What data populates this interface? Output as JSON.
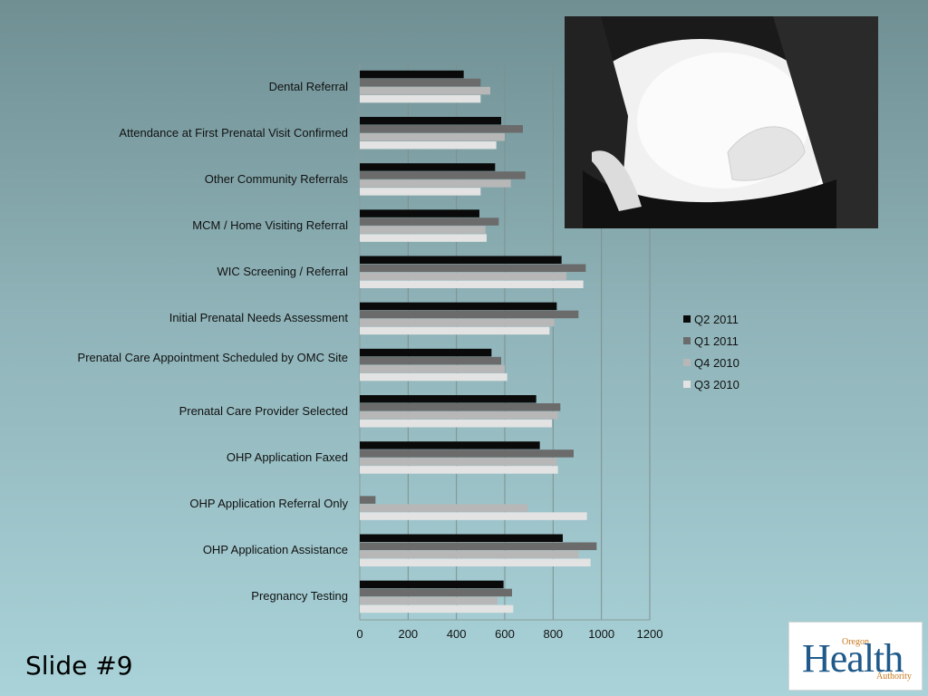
{
  "slide": {
    "title": "Slide #9"
  },
  "logo": {
    "main": "Health",
    "top": "Oregon",
    "bottom": "Authority"
  },
  "colors": {
    "q2_2011": "#0a0a0a",
    "q1_2011": "#6b6b6b",
    "q4_2010": "#b7b7b7",
    "q3_2010": "#e3e3e3"
  },
  "chart_data": {
    "type": "bar",
    "orientation": "horizontal",
    "categories": [
      "Dental Referral",
      "Attendance at First Prenatal Visit Confirmed",
      "Other Community Referrals",
      "MCM / Home Visiting Referral",
      "WIC Screening / Referral",
      "Initial Prenatal Needs Assessment",
      "Prenatal Care Appointment Scheduled by OMC Site",
      "Prenatal Care Provider Selected",
      "OHP Application Faxed",
      "OHP Application Referral Only",
      "OHP Application Assistance",
      "Pregnancy Testing"
    ],
    "series": [
      {
        "name": "Q2 2011",
        "values": [
          430,
          585,
          560,
          495,
          835,
          815,
          545,
          730,
          745,
          0,
          840,
          595
        ]
      },
      {
        "name": "Q1 2011",
        "values": [
          500,
          675,
          685,
          575,
          935,
          905,
          585,
          830,
          885,
          65,
          980,
          630
        ]
      },
      {
        "name": "Q4 2010",
        "values": [
          540,
          600,
          625,
          520,
          855,
          805,
          600,
          820,
          815,
          695,
          905,
          570
        ]
      },
      {
        "name": "Q3 2010",
        "values": [
          500,
          565,
          500,
          525,
          925,
          785,
          610,
          795,
          820,
          940,
          955,
          635
        ]
      }
    ],
    "xlim": [
      0,
      1200
    ],
    "xticks": [
      0,
      200,
      400,
      600,
      800,
      1000,
      1200
    ],
    "grid": true,
    "legend_position": "right"
  }
}
